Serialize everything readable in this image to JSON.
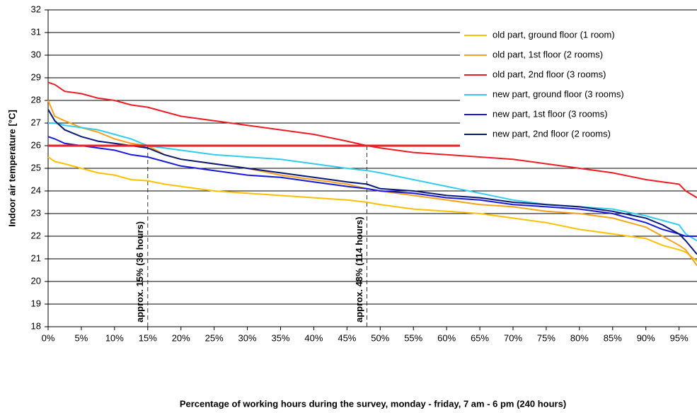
{
  "chart_data": {
    "type": "line",
    "x_label": "Percentage of working hours during the survey, monday - friday, 7 am - 6 pm (240 hours)",
    "y_label": "Indoor air temperature [°C]",
    "x": [
      0,
      1,
      2.5,
      5,
      7.5,
      10,
      12.5,
      15,
      17.5,
      20,
      25,
      30,
      35,
      40,
      45,
      48,
      50,
      55,
      60,
      65,
      70,
      75,
      80,
      85,
      90,
      92.5,
      95,
      96,
      97.7
    ],
    "series": [
      {
        "name": "old part, ground floor (1 room)",
        "color": "#ffc000",
        "values": [
          25.5,
          25.3,
          25.2,
          25.0,
          24.8,
          24.7,
          24.5,
          24.45,
          24.3,
          24.2,
          24.0,
          23.9,
          23.8,
          23.7,
          23.6,
          23.5,
          23.4,
          23.2,
          23.1,
          23.0,
          22.8,
          22.6,
          22.3,
          22.1,
          21.9,
          21.6,
          21.4,
          21.3,
          20.9
        ]
      },
      {
        "name": "old part, 1st floor (2 rooms)",
        "color": "#f7a21b",
        "values": [
          28.0,
          27.3,
          27.1,
          26.8,
          26.6,
          26.3,
          26.1,
          26.0,
          25.6,
          25.4,
          25.2,
          25.0,
          24.7,
          24.5,
          24.3,
          24.1,
          24.0,
          23.8,
          23.6,
          23.4,
          23.3,
          23.1,
          23.0,
          22.8,
          22.4,
          22.0,
          21.6,
          21.4,
          20.7
        ]
      },
      {
        "name": "old part, 2nd floor (3 rooms)",
        "color": "#ee1c24",
        "values": [
          28.8,
          28.7,
          28.4,
          28.3,
          28.1,
          28.0,
          27.8,
          27.7,
          27.5,
          27.3,
          27.1,
          26.9,
          26.7,
          26.5,
          26.2,
          26.0,
          25.9,
          25.7,
          25.6,
          25.5,
          25.4,
          25.2,
          25.0,
          24.8,
          24.5,
          24.4,
          24.3,
          24.0,
          23.7
        ]
      },
      {
        "name": "new part, ground floor (3 rooms)",
        "color": "#33ccee",
        "values": [
          27.0,
          27.0,
          26.9,
          26.8,
          26.7,
          26.5,
          26.3,
          26.0,
          25.9,
          25.8,
          25.6,
          25.5,
          25.4,
          25.2,
          25.0,
          24.9,
          24.8,
          24.5,
          24.2,
          23.9,
          23.6,
          23.4,
          23.3,
          23.2,
          22.9,
          22.7,
          22.5,
          22.1,
          21.8
        ]
      },
      {
        "name": "new part, 1st floor (3 rooms)",
        "color": "#1a1adb",
        "values": [
          26.4,
          26.3,
          26.1,
          26.0,
          25.9,
          25.8,
          25.6,
          25.5,
          25.3,
          25.1,
          24.9,
          24.7,
          24.6,
          24.4,
          24.2,
          24.1,
          24.0,
          23.9,
          23.7,
          23.6,
          23.4,
          23.3,
          23.2,
          23.0,
          22.6,
          22.3,
          22.1,
          22.0,
          22.0
        ]
      },
      {
        "name": "new part, 2nd floor (2 rooms)",
        "color": "#0a1a7a",
        "values": [
          27.6,
          27.1,
          26.7,
          26.4,
          26.2,
          26.1,
          26.0,
          25.9,
          25.6,
          25.4,
          25.2,
          25.0,
          24.8,
          24.6,
          24.4,
          24.3,
          24.1,
          24.0,
          23.8,
          23.7,
          23.5,
          23.4,
          23.3,
          23.1,
          22.8,
          22.5,
          22.1,
          21.8,
          21.2
        ]
      }
    ],
    "threshold": {
      "value": 26,
      "color": "#ee1c24"
    },
    "annotations": [
      {
        "text": "approx. 15% (36 hours)",
        "x": 15
      },
      {
        "text": "approx. 48% (114 hours)",
        "x": 48
      }
    ],
    "xlim": [
      0,
      97.7
    ],
    "xticks": [
      {
        "value": 0,
        "label": "0%"
      },
      {
        "value": 5,
        "label": "5%"
      },
      {
        "value": 10,
        "label": "10%"
      },
      {
        "value": 15,
        "label": "15%"
      },
      {
        "value": 20,
        "label": "20%"
      },
      {
        "value": 25,
        "label": "25%"
      },
      {
        "value": 30,
        "label": "30%"
      },
      {
        "value": 35,
        "label": "35%"
      },
      {
        "value": 40,
        "label": "40%"
      },
      {
        "value": 45,
        "label": "45%"
      },
      {
        "value": 50,
        "label": "50%"
      },
      {
        "value": 55,
        "label": "55%"
      },
      {
        "value": 60,
        "label": "60%"
      },
      {
        "value": 65,
        "label": "65%"
      },
      {
        "value": 70,
        "label": "70%"
      },
      {
        "value": 75,
        "label": "75%"
      },
      {
        "value": 80,
        "label": "80%"
      },
      {
        "value": 85,
        "label": "85%"
      },
      {
        "value": 90,
        "label": "90%"
      },
      {
        "value": 95,
        "label": "95%"
      }
    ],
    "ylim": [
      18,
      32
    ],
    "yticks": [
      18,
      19,
      20,
      21,
      22,
      23,
      24,
      25,
      26,
      27,
      28,
      29,
      30,
      31,
      32
    ],
    "grid": true,
    "legend": "top-right"
  }
}
